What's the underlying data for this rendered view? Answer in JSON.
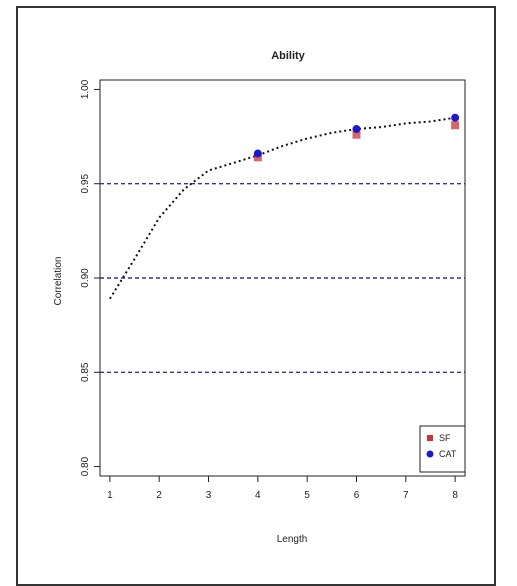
{
  "chart_data": {
    "type": "line",
    "title": "Ability",
    "xlabel": "Length",
    "ylabel": "Correlation",
    "xlim": [
      0.8,
      8.2
    ],
    "ylim": [
      0.795,
      1.005
    ],
    "x_ticks": [
      1,
      2,
      3,
      4,
      5,
      6,
      7,
      8
    ],
    "x_tick_labels": [
      "1",
      "2",
      "3",
      "4",
      "5",
      "6",
      "7",
      "8"
    ],
    "y_ticks": [
      0.8,
      0.85,
      0.9,
      0.95,
      1.0
    ],
    "y_tick_labels": [
      "0.80",
      "0.85",
      "0.90",
      "0.95",
      "1.00"
    ],
    "reference_lines": [
      0.85,
      0.9,
      0.95
    ],
    "reference_line_color": "#3333aa",
    "curve": {
      "color": "#111111",
      "style": "dotted",
      "x": [
        1.0,
        1.5,
        2.0,
        2.5,
        3.0,
        3.5,
        4.0,
        4.5,
        5.0,
        5.5,
        6.0,
        6.5,
        7.0,
        7.5,
        8.0
      ],
      "y": [
        0.889,
        0.91,
        0.932,
        0.947,
        0.957,
        0.961,
        0.965,
        0.97,
        0.974,
        0.977,
        0.979,
        0.98,
        0.982,
        0.983,
        0.985
      ]
    },
    "series": [
      {
        "name": "SF",
        "color": "#cc3333",
        "marker": "square",
        "x": [
          4,
          6,
          8
        ],
        "y": [
          0.964,
          0.976,
          0.981
        ]
      },
      {
        "name": "CAT",
        "color": "#1a1acc",
        "marker": "circle",
        "x": [
          4,
          6,
          8
        ],
        "y": [
          0.966,
          0.979,
          0.985
        ]
      }
    ],
    "legend_position": "bottom-right",
    "grid": false
  }
}
